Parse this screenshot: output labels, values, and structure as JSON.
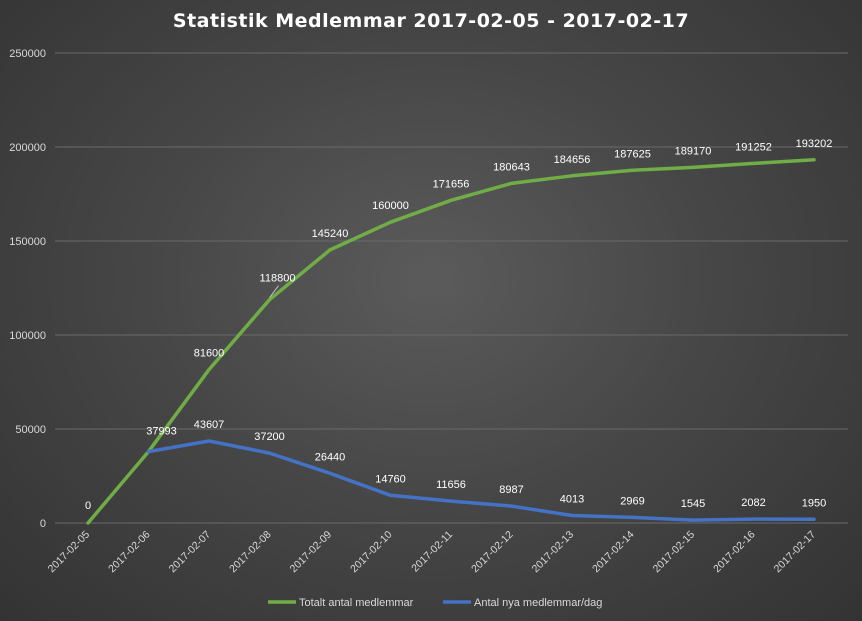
{
  "chart_data": {
    "type": "line",
    "title": "Statistik Medlemmar 2017-02-05 - 2017-02-17",
    "xlabel": "",
    "ylabel": "",
    "ylim": [
      0,
      250000
    ],
    "yticks": [
      "0",
      "50000",
      "100000",
      "150000",
      "200000",
      "250000"
    ],
    "grid": true,
    "legend": "bottom",
    "categories": [
      "2017-02-05",
      "2017-02-06",
      "2017-02-07",
      "2017-02-08",
      "2017-02-09",
      "2017-02-10",
      "2017-02-11",
      "2017-02-12",
      "2017-02-13",
      "2017-02-14",
      "2017-02-15",
      "2017-02-16",
      "2017-02-17"
    ],
    "series": [
      {
        "name": "Totalt antal medlemmar",
        "color": "#70ad47",
        "values": [
          0,
          37993,
          81600,
          118800,
          145240,
          160000,
          171656,
          180643,
          184656,
          187625,
          189170,
          191252,
          193202
        ],
        "labels": [
          "0",
          "37993",
          "81600",
          "118800",
          "145240",
          "160000",
          "171656",
          "180643",
          "184656",
          "187625",
          "189170",
          "191252",
          "193202"
        ]
      },
      {
        "name": "Antal nya medlemmar/dag",
        "color": "#4472c4",
        "values": [
          null,
          37993,
          43607,
          37200,
          26440,
          14760,
          11656,
          8987,
          4013,
          2969,
          1545,
          2082,
          1950
        ],
        "labels": [
          "",
          "",
          "43607",
          "37200",
          "26440",
          "14760",
          "11656",
          "8987",
          "4013",
          "2969",
          "1545",
          "2082",
          "1950"
        ]
      }
    ]
  }
}
